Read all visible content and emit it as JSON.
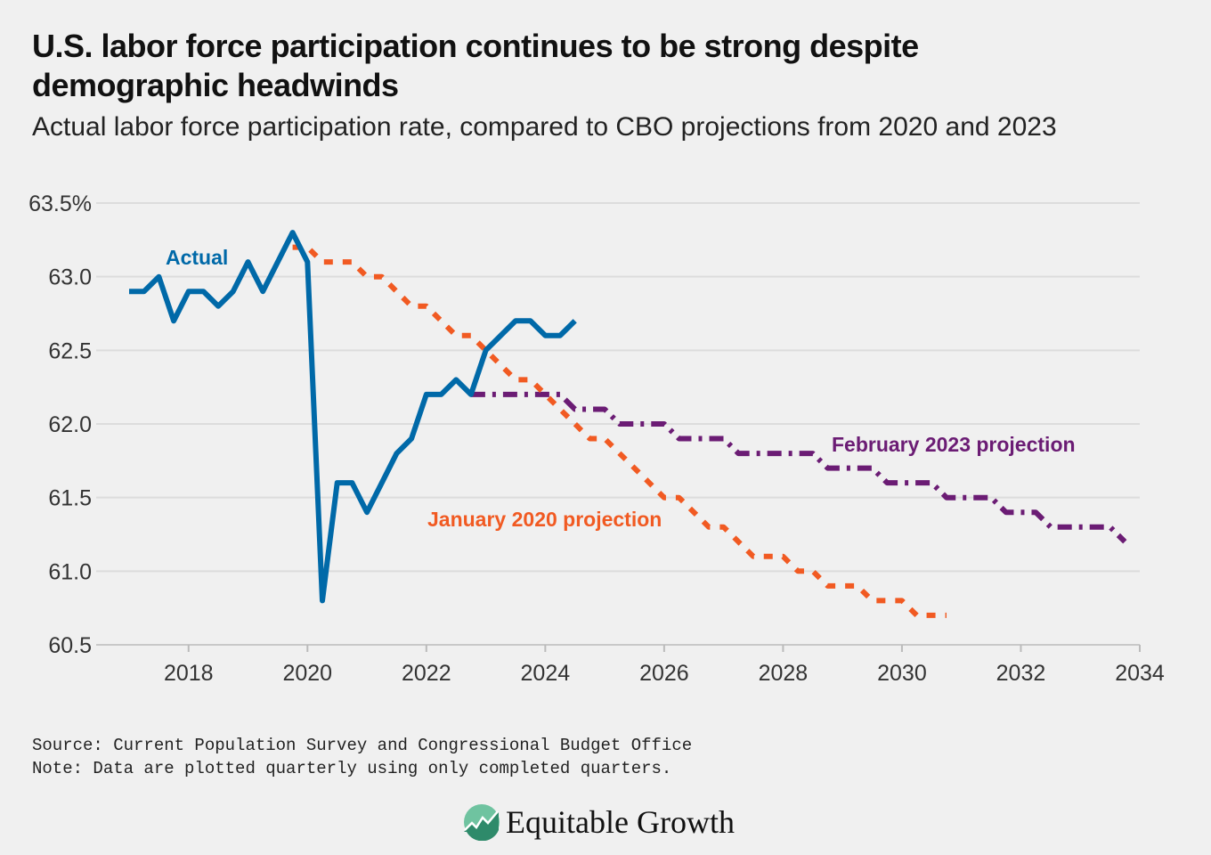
{
  "title": "U.S. labor force participation continues to be strong despite demographic headwinds",
  "subtitle": "Actual labor force participation rate, compared to CBO projections from 2020 and 2023",
  "notes": {
    "source": "Source: Current Population Survey and Congressional Budget Office",
    "note": "Note: Data are plotted quarterly using only completed quarters."
  },
  "logo": {
    "text": "Equitable Growth"
  },
  "chart_data": {
    "type": "line",
    "title": "",
    "xlabel": "",
    "ylabel": "",
    "xlim": [
      2017,
      2034
    ],
    "ylim": [
      60.5,
      63.5
    ],
    "grid": "horizontal",
    "x_ticks": [
      2018,
      2020,
      2022,
      2024,
      2026,
      2028,
      2030,
      2032,
      2034
    ],
    "x_tick_labels": [
      "2018",
      "2020",
      "2022",
      "2024",
      "2026",
      "2028",
      "2030",
      "2032",
      "2034"
    ],
    "y_ticks": [
      60.5,
      61.0,
      61.5,
      62.0,
      62.5,
      63.0,
      63.5
    ],
    "y_tick_labels": [
      "60.5",
      "61.0",
      "61.5",
      "62.0",
      "62.5",
      "63.0",
      "63.5%"
    ],
    "series": [
      {
        "name": "Actual",
        "color": "#0069a8",
        "style": "solid",
        "x": [
          2017,
          2017.25,
          2017.5,
          2017.75,
          2018,
          2018.25,
          2018.5,
          2018.75,
          2019,
          2019.25,
          2019.5,
          2019.75,
          2020,
          2020.25,
          2020.5,
          2020.75,
          2021,
          2021.25,
          2021.5,
          2021.75,
          2022,
          2022.25,
          2022.5,
          2022.75,
          2023,
          2023.25,
          2023.5,
          2023.75,
          2024,
          2024.25,
          2024.5
        ],
        "y": [
          62.9,
          62.9,
          63.0,
          62.7,
          62.9,
          62.9,
          62.8,
          62.9,
          63.1,
          62.9,
          63.1,
          63.3,
          63.1,
          60.8,
          61.6,
          61.6,
          61.4,
          61.6,
          61.8,
          61.9,
          62.2,
          62.2,
          62.3,
          62.2,
          62.5,
          62.6,
          62.7,
          62.7,
          62.6,
          62.6,
          62.7
        ]
      },
      {
        "name": "January 2020 projection",
        "color": "#f15a22",
        "style": "dotted",
        "x": [
          2019.75,
          2020,
          2020.25,
          2020.5,
          2020.75,
          2021,
          2021.25,
          2021.5,
          2021.75,
          2022,
          2022.25,
          2022.5,
          2022.75,
          2023,
          2023.25,
          2023.5,
          2023.75,
          2024,
          2024.25,
          2024.5,
          2024.75,
          2025,
          2025.25,
          2025.5,
          2025.75,
          2026,
          2026.25,
          2026.5,
          2026.75,
          2027,
          2027.25,
          2027.5,
          2027.75,
          2028,
          2028.25,
          2028.5,
          2028.75,
          2029,
          2029.25,
          2029.5,
          2029.75,
          2030,
          2030.25,
          2030.5,
          2030.75
        ],
        "y": [
          63.2,
          63.2,
          63.1,
          63.1,
          63.1,
          63.0,
          63.0,
          62.9,
          62.8,
          62.8,
          62.7,
          62.6,
          62.6,
          62.5,
          62.4,
          62.3,
          62.3,
          62.2,
          62.1,
          62.0,
          61.9,
          61.9,
          61.8,
          61.7,
          61.6,
          61.5,
          61.5,
          61.4,
          61.3,
          61.3,
          61.2,
          61.1,
          61.1,
          61.1,
          61.0,
          61.0,
          60.9,
          60.9,
          60.9,
          60.8,
          60.8,
          60.8,
          60.7,
          60.7,
          60.7
        ]
      },
      {
        "name": "February 2023 projection",
        "color": "#6b1c74",
        "style": "dashdot",
        "x": [
          2022.75,
          2023,
          2023.25,
          2023.5,
          2023.75,
          2024,
          2024.25,
          2024.5,
          2024.75,
          2025,
          2025.25,
          2025.5,
          2025.75,
          2026,
          2026.25,
          2026.5,
          2026.75,
          2027,
          2027.25,
          2027.5,
          2027.75,
          2028,
          2028.25,
          2028.5,
          2028.75,
          2029,
          2029.25,
          2029.5,
          2029.75,
          2030,
          2030.25,
          2030.5,
          2030.75,
          2031,
          2031.25,
          2031.5,
          2031.75,
          2032,
          2032.25,
          2032.5,
          2032.75,
          2033,
          2033.25,
          2033.5,
          2033.75
        ],
        "y": [
          62.2,
          62.2,
          62.2,
          62.2,
          62.2,
          62.2,
          62.2,
          62.1,
          62.1,
          62.1,
          62.0,
          62.0,
          62.0,
          62.0,
          61.9,
          61.9,
          61.9,
          61.9,
          61.8,
          61.8,
          61.8,
          61.8,
          61.8,
          61.8,
          61.7,
          61.7,
          61.7,
          61.7,
          61.6,
          61.6,
          61.6,
          61.6,
          61.5,
          61.5,
          61.5,
          61.5,
          61.4,
          61.4,
          61.4,
          61.3,
          61.3,
          61.3,
          61.3,
          61.3,
          61.2
        ]
      }
    ]
  }
}
